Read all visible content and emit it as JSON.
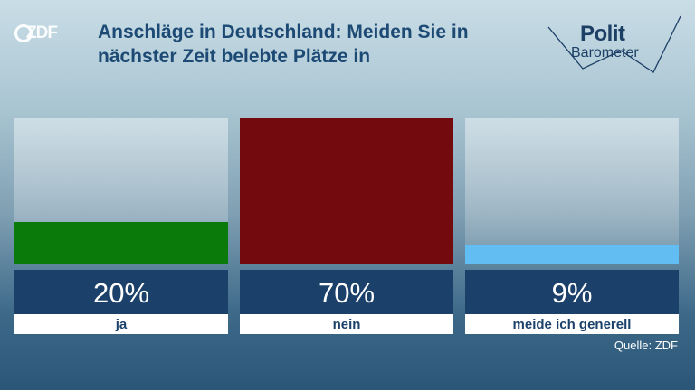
{
  "logo": {
    "text": "ZDF"
  },
  "header": {
    "title": "Anschläge in Deutschland: Meiden Sie in nächster Zeit belebte Plätze in"
  },
  "brand": {
    "line1": "Polit",
    "line2": "Barometer"
  },
  "source": "Quelle: ZDF",
  "colors": {
    "ja": "#0a7a0a",
    "nein": "#730b0e",
    "meide": "#62bdf2",
    "value_box": "#1b416a"
  },
  "chart_data": {
    "type": "bar",
    "categories": [
      "ja",
      "nein",
      "meide ich generell"
    ],
    "values": [
      20,
      70,
      9
    ],
    "value_labels": [
      "20%",
      "70%",
      "9%"
    ],
    "ylim": [
      0,
      70
    ]
  }
}
